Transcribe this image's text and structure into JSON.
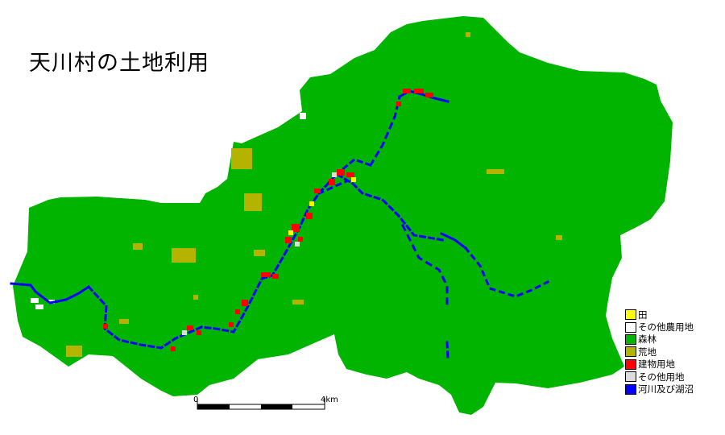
{
  "title": "天川村の土地利用",
  "colors": {
    "background": "#ffffff",
    "forest": "#00b400",
    "paddy": "#ffff00",
    "other_agri": "#ffffff",
    "wasteland": "#b4b400",
    "building": "#ff0000",
    "other_land": "#dcdcdc",
    "water": "#0000ff"
  },
  "legend": [
    {
      "label": "田",
      "color": "#ffff00"
    },
    {
      "label": "その他農用地",
      "color": "#ffffff"
    },
    {
      "label": "森林",
      "color": "#00b400"
    },
    {
      "label": "荒地",
      "color": "#b4b400"
    },
    {
      "label": "建物用地",
      "color": "#ff0000"
    },
    {
      "label": "その他用地",
      "color": "#dcdcdc"
    },
    {
      "label": "河川及び湖沼",
      "color": "#0000ff"
    }
  ],
  "scale_bar": {
    "start_label": "0",
    "end_label": "4km"
  }
}
